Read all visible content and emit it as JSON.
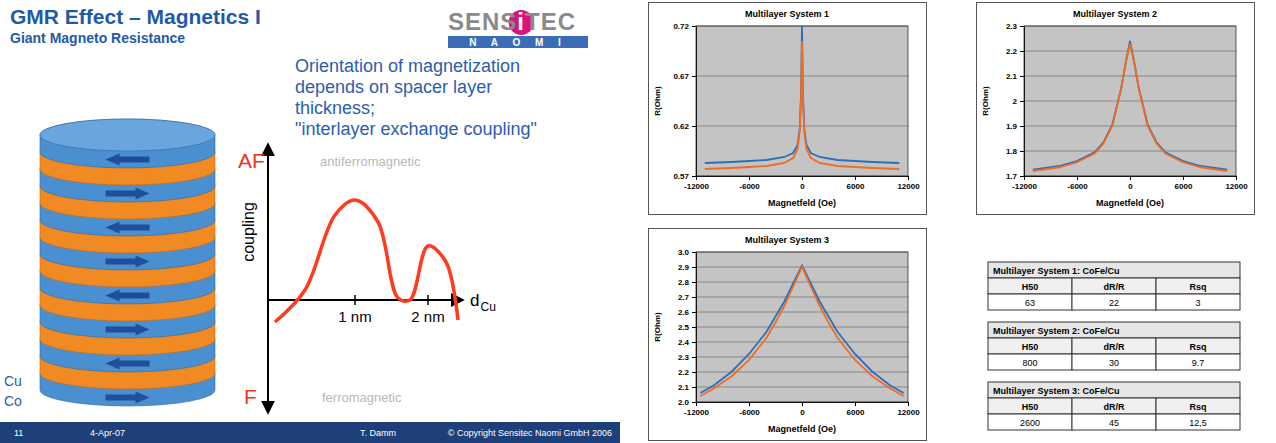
{
  "slide": {
    "title": "GMR Effect – Magnetics I",
    "subtitle": "Giant Magneto Resistance",
    "logo": "SENSiTEC",
    "logo_sub": "N A O M I",
    "text": [
      "Orientation of magnetization",
      "depends on spacer layer",
      "thickness;",
      "\"interlayer exchange coupling\""
    ],
    "stack_labels": [
      "Cu",
      "Co"
    ],
    "coupling": {
      "axis_label": "coupling",
      "x_label": "d",
      "x_label_sub": "Cu",
      "top": "AF",
      "top_note": "antiferromagnetic",
      "bottom": "F",
      "bottom_note": "ferromagnetic",
      "ticks": [
        "1 nm",
        "2 nm"
      ]
    },
    "footer": {
      "page": 11,
      "date": "4-Apr-07",
      "author": "T. Damm",
      "copyright": "© Copyright Sensitec Naomi GmbH 2006"
    }
  },
  "chart_data": [
    {
      "type": "line",
      "title": "Multilayer System 1",
      "xlabel": "Magnetfeld (Oe)",
      "ylabel": "R(Ohm)",
      "x": [
        -11000,
        -8000,
        -6000,
        -4000,
        -2000,
        -1000,
        -500,
        -250,
        -100,
        0,
        100,
        250,
        500,
        1000,
        2000,
        4000,
        6000,
        8000,
        11000
      ],
      "series": [
        {
          "color": "#2a6fba",
          "values": [
            0.583,
            0.584,
            0.585,
            0.586,
            0.589,
            0.593,
            0.601,
            0.618,
            0.655,
            0.72,
            0.655,
            0.618,
            0.601,
            0.593,
            0.589,
            0.586,
            0.585,
            0.584,
            0.583
          ]
        },
        {
          "color": "#f26b21",
          "values": [
            0.577,
            0.578,
            0.579,
            0.58,
            0.583,
            0.588,
            0.597,
            0.615,
            0.65,
            0.705,
            0.65,
            0.615,
            0.597,
            0.588,
            0.583,
            0.58,
            0.579,
            0.578,
            0.577
          ]
        }
      ],
      "xlim": [
        -12000,
        12000
      ],
      "xticks": [
        -12000,
        -6000,
        0,
        6000,
        12000
      ],
      "ylim": [
        0.57,
        0.72
      ],
      "yticks": [
        0.57,
        0.62,
        0.67,
        0.72
      ],
      "grid": true
    },
    {
      "type": "line",
      "title": "Multilayer System 2",
      "xlabel": "Magnetfeld (Oe)",
      "ylabel": "R(Ohm)",
      "x": [
        -11000,
        -8000,
        -6000,
        -4000,
        -3000,
        -2000,
        -1000,
        -500,
        0,
        500,
        1000,
        2000,
        3000,
        4000,
        6000,
        8000,
        11000
      ],
      "series": [
        {
          "color": "#2a6fba",
          "values": [
            1.725,
            1.74,
            1.76,
            1.795,
            1.835,
            1.905,
            2.05,
            2.15,
            2.24,
            2.15,
            2.05,
            1.905,
            1.835,
            1.795,
            1.76,
            1.74,
            1.725
          ]
        },
        {
          "color": "#f26b21",
          "values": [
            1.72,
            1.735,
            1.755,
            1.79,
            1.83,
            1.9,
            2.05,
            2.15,
            2.23,
            2.15,
            2.05,
            1.9,
            1.83,
            1.79,
            1.755,
            1.735,
            1.72
          ]
        }
      ],
      "xlim": [
        -12000,
        12000
      ],
      "xticks": [
        -12000,
        -6000,
        0,
        6000,
        12000
      ],
      "ylim": [
        1.7,
        2.3
      ],
      "yticks": [
        1.7,
        1.8,
        1.9,
        2,
        2.1,
        2.2,
        2.3
      ],
      "grid": true
    },
    {
      "type": "line",
      "title": "Multilayer System 3",
      "xlabel": "Magnetfeld (Oe)",
      "ylabel": "R(Ohm)",
      "x": [
        -11500,
        -10000,
        -8000,
        -6000,
        -4000,
        -3000,
        -2000,
        -1000,
        0,
        1000,
        2000,
        3000,
        4000,
        6000,
        8000,
        10000,
        11500
      ],
      "series": [
        {
          "color": "#2a6fba",
          "values": [
            2.06,
            2.11,
            2.2,
            2.32,
            2.47,
            2.57,
            2.67,
            2.79,
            2.91,
            2.79,
            2.67,
            2.57,
            2.47,
            2.32,
            2.2,
            2.11,
            2.06
          ]
        },
        {
          "color": "#f26b21",
          "values": [
            2.04,
            2.09,
            2.17,
            2.28,
            2.43,
            2.53,
            2.64,
            2.77,
            2.9,
            2.77,
            2.64,
            2.53,
            2.43,
            2.28,
            2.17,
            2.09,
            2.04
          ]
        }
      ],
      "xlim": [
        -12000,
        12000
      ],
      "xticks": [
        -12000,
        -6000,
        0,
        6000,
        12000
      ],
      "ylim": [
        2,
        3
      ],
      "yticks": [
        {
          "value": 2,
          "label": "2.0"
        },
        2.1,
        2.2,
        2.3,
        2.4,
        2.5,
        2.6,
        2.7,
        2.8,
        2.9,
        {
          "value": 3,
          "label": "3.0"
        }
      ],
      "grid": true
    }
  ],
  "tables": [
    {
      "title": "Multilayer System 1: CoFe/Cu",
      "header": [
        "H50",
        "dR/R",
        "Rsq"
      ],
      "rows": [
        [
          63,
          22,
          3
        ]
      ]
    },
    {
      "title": "Multilayer System 2: CoFe/Cu",
      "header": [
        "H50",
        "dR/R",
        "Rsq"
      ],
      "rows": [
        [
          800,
          30,
          9.7
        ]
      ]
    },
    {
      "title": "Multilayer System 3: CoFe/Cu",
      "header": [
        "H50",
        "dR/R",
        "Rsq"
      ],
      "rows": [
        [
          2600,
          45,
          "12,5"
        ]
      ]
    }
  ]
}
